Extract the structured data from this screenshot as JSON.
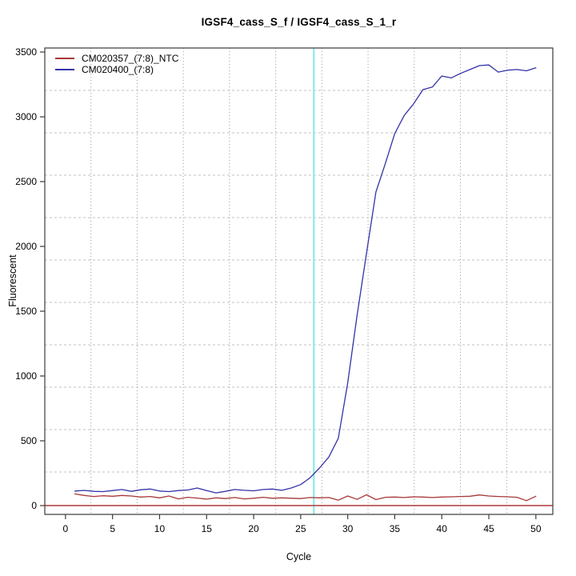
{
  "window": {
    "background": "#FFFFFF"
  },
  "chart_data": {
    "type": "line",
    "title": "IGSF4_cass_S_f / IGSF4_cass_S_1_r",
    "xlabel": "Cycle",
    "ylabel": "Fluorescent",
    "xlim": [
      -2.2,
      51.8
    ],
    "ylim": [
      -68,
      3531
    ],
    "x_ticks": [
      0,
      5,
      10,
      15,
      20,
      25,
      30,
      35,
      40,
      45,
      50
    ],
    "y_ticks": [
      0,
      500,
      1000,
      1500,
      2000,
      2500,
      3000,
      3500
    ],
    "grid": {
      "nx": 11,
      "ny": 11,
      "v_color": "#999999",
      "h_color": "#C2C2C2"
    },
    "legend_position": "top-left",
    "axis_color": "#3a3a3a",
    "x": [
      1,
      2,
      3,
      4,
      5,
      6,
      7,
      8,
      9,
      10,
      11,
      12,
      13,
      14,
      15,
      16,
      17,
      18,
      19,
      20,
      21,
      22,
      23,
      24,
      25,
      26,
      27,
      28,
      29,
      30,
      31,
      32,
      33,
      34,
      35,
      36,
      37,
      38,
      39,
      40,
      41,
      42,
      43,
      44,
      45,
      46,
      47,
      48,
      49,
      50
    ],
    "series": [
      {
        "name": "CM020357_(7:8)_NTC",
        "color": "#A83838",
        "values": [
          90,
          78,
          70,
          76,
          72,
          78,
          74,
          66,
          70,
          60,
          74,
          52,
          64,
          58,
          50,
          60,
          54,
          62,
          52,
          57,
          64,
          57,
          60,
          57,
          54,
          62,
          60,
          62,
          42,
          74,
          48,
          84,
          46,
          64,
          66,
          62,
          68,
          66,
          62,
          66,
          68,
          70,
          72,
          82,
          74,
          70,
          68,
          64,
          38,
          72
        ]
      },
      {
        "name": "CM020400_(7:8)",
        "color": "#3333A8",
        "values": [
          112,
          117,
          110,
          108,
          116,
          124,
          110,
          122,
          128,
          112,
          108,
          116,
          120,
          136,
          116,
          98,
          110,
          124,
          118,
          114,
          124,
          128,
          118,
          136,
          162,
          215,
          290,
          375,
          520,
          945,
          1470,
          1950,
          2420,
          2640,
          2870,
          3010,
          3100,
          3210,
          3230,
          3315,
          3300,
          3335,
          3365,
          3395,
          3400,
          3345,
          3360,
          3365,
          3355,
          3378
        ]
      }
    ],
    "baseline": {
      "y": 0,
      "color": "#B44947"
    },
    "ct_line": {
      "x": 26.4,
      "color": "#82E9E9"
    }
  }
}
